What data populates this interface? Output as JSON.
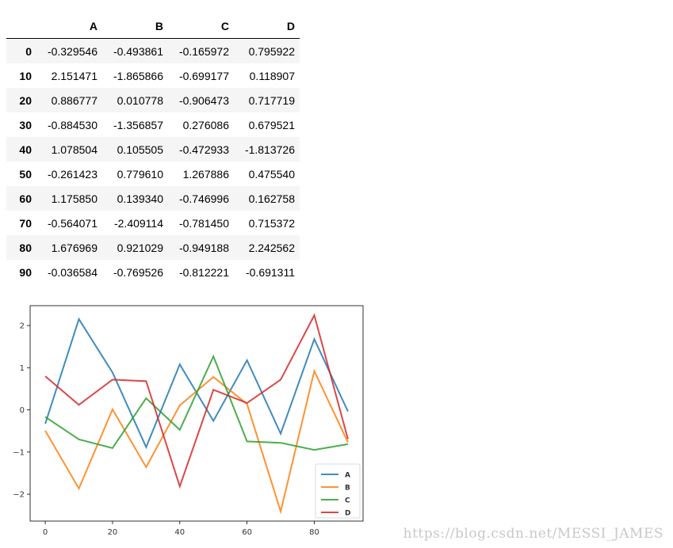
{
  "table": {
    "columns": [
      "A",
      "B",
      "C",
      "D"
    ],
    "rows": [
      {
        "index": "0",
        "cells": [
          "-0.329546",
          "-0.493861",
          "-0.165972",
          "0.795922"
        ]
      },
      {
        "index": "10",
        "cells": [
          "2.151471",
          "-1.865866",
          "-0.699177",
          "0.118907"
        ]
      },
      {
        "index": "20",
        "cells": [
          "0.886777",
          "0.010778",
          "-0.906473",
          "0.717719"
        ]
      },
      {
        "index": "30",
        "cells": [
          "-0.884530",
          "-1.356857",
          "0.276086",
          "0.679521"
        ]
      },
      {
        "index": "40",
        "cells": [
          "1.078504",
          "0.105505",
          "-0.472933",
          "-1.813726"
        ]
      },
      {
        "index": "50",
        "cells": [
          "-0.261423",
          "0.779610",
          "1.267886",
          "0.475540"
        ]
      },
      {
        "index": "60",
        "cells": [
          "1.175850",
          "0.139340",
          "-0.746996",
          "0.162758"
        ]
      },
      {
        "index": "70",
        "cells": [
          "-0.564071",
          "-2.409114",
          "-0.781450",
          "0.715372"
        ]
      },
      {
        "index": "80",
        "cells": [
          "1.676969",
          "0.921029",
          "-0.949188",
          "2.242562"
        ]
      },
      {
        "index": "90",
        "cells": [
          "-0.036584",
          "-0.769526",
          "-0.812221",
          "-0.691311"
        ]
      }
    ]
  },
  "chart_data": {
    "type": "line",
    "x": [
      0,
      10,
      20,
      30,
      40,
      50,
      60,
      70,
      80,
      90
    ],
    "series": [
      {
        "name": "A",
        "color": "#1f77b4",
        "values": [
          -0.329546,
          2.151471,
          0.886777,
          -0.88453,
          1.078504,
          -0.261423,
          1.17585,
          -0.564071,
          1.676969,
          -0.036584
        ]
      },
      {
        "name": "B",
        "color": "#ff7f0e",
        "values": [
          -0.493861,
          -1.865866,
          0.010778,
          -1.356857,
          0.105505,
          0.77961,
          0.13934,
          -2.409114,
          0.921029,
          -0.769526
        ]
      },
      {
        "name": "C",
        "color": "#2ca02c",
        "values": [
          -0.165972,
          -0.699177,
          -0.906473,
          0.276086,
          -0.472933,
          1.267886,
          -0.746996,
          -0.78145,
          -0.949188,
          -0.812221
        ]
      },
      {
        "name": "D",
        "color": "#d62728",
        "values": [
          0.795922,
          0.118907,
          0.717719,
          0.679521,
          -1.813726,
          0.47554,
          0.162758,
          0.715372,
          2.242562,
          -0.691311
        ]
      }
    ],
    "xlim": [
      -4.5,
      94.5
    ],
    "ylim": [
      -2.6365,
      2.47
    ],
    "xticks": [
      "0",
      "20",
      "40",
      "60",
      "80"
    ],
    "yticks": [
      "2",
      "1",
      "0",
      "−1",
      "−2"
    ],
    "xtick_values": [
      0,
      20,
      40,
      60,
      80
    ],
    "ytick_values": [
      2,
      1,
      0,
      -1,
      -2
    ],
    "grid": false,
    "legend": "lower-right",
    "title": "",
    "xlabel": "",
    "ylabel": ""
  },
  "watermark": "https://blog.csdn.net/MESSI_JAMES"
}
